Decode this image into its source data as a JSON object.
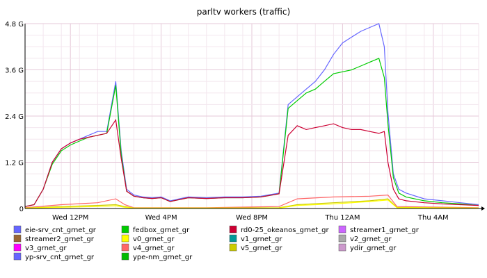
{
  "chart_data": {
    "type": "line",
    "title": "parltv workers (traffic)",
    "xlabel": "",
    "ylabel": "",
    "x_tick_labels": [
      "Wed 12PM",
      "Wed  4PM",
      "Wed  8PM",
      "Thu 12AM",
      "Thu  4AM"
    ],
    "x_range_hours": [
      0,
      25
    ],
    "x_tick_hours": [
      2.5,
      7.5,
      12.5,
      17.5,
      22.5
    ],
    "ylim": [
      0,
      4.8
    ],
    "y_ticks": [
      0,
      1.2,
      2.4,
      3.6,
      4.8
    ],
    "y_tick_labels": [
      "0",
      "1.2 G",
      "2.4 G",
      "3.6 G",
      "4.8 G"
    ],
    "grid": true,
    "legend_position": "bottom",
    "series": [
      {
        "name": "eie-srv_cnt_grnet_gr",
        "color": "#6666ff"
      },
      {
        "name": "fedbox_grnet_gr",
        "color": "#00cc00"
      },
      {
        "name": "rd0-25_okeanos_grnet_gr",
        "color": "#cc0033"
      },
      {
        "name": "streamer1_grnet_gr",
        "color": "#cc66ff"
      },
      {
        "name": "streamer2_grnet_gr",
        "color": "#996633"
      },
      {
        "name": "v0_grnet_gr",
        "color": "#ffff00"
      },
      {
        "name": "v1_grnet_gr",
        "color": "#009999"
      },
      {
        "name": "v2_grnet_gr",
        "color": "#aaaaaa"
      },
      {
        "name": "v3_grnet_gr",
        "color": "#ff00ff"
      },
      {
        "name": "v4_grnet_gr",
        "color": "#ff6666"
      },
      {
        "name": "v5_grnet_gr",
        "color": "#cccc00"
      },
      {
        "name": "ydir_grnet_gr",
        "color": "#cc99cc"
      },
      {
        "name": "yp-srv_cnt_grnet_gr",
        "color": "#6666ff"
      },
      {
        "name": "ype-nm_grnet_gr",
        "color": "#00bb00"
      }
    ],
    "plotted": [
      {
        "series": "eie-srv_cnt_grnet_gr",
        "x": [
          0,
          0.5,
          1,
          1.5,
          2,
          2.5,
          3,
          3.5,
          4,
          4.5,
          5,
          5.3,
          5.6,
          6,
          6.5,
          7,
          7.5,
          8,
          9,
          10,
          11,
          12,
          13,
          14,
          14.5,
          15,
          15.5,
          16,
          16.5,
          17,
          17.5,
          18,
          18.5,
          19,
          19.5,
          19.8,
          20,
          20.3,
          20.6,
          21,
          22,
          23,
          24,
          25
        ],
        "y": [
          0.05,
          0.1,
          0.5,
          1.2,
          1.55,
          1.7,
          1.8,
          1.9,
          2.0,
          2.0,
          3.3,
          1.5,
          0.5,
          0.35,
          0.3,
          0.28,
          0.3,
          0.2,
          0.3,
          0.28,
          0.3,
          0.3,
          0.32,
          0.4,
          2.7,
          2.9,
          3.1,
          3.3,
          3.6,
          4.0,
          4.3,
          4.45,
          4.6,
          4.7,
          4.8,
          4.2,
          2.5,
          0.9,
          0.5,
          0.4,
          0.25,
          0.2,
          0.15,
          0.1
        ]
      },
      {
        "series": "fedbox_grnet_gr",
        "x": [
          0,
          0.5,
          1,
          1.5,
          2,
          2.5,
          3,
          3.5,
          4,
          4.5,
          5,
          5.3,
          5.6,
          6,
          6.5,
          7,
          7.5,
          8,
          9,
          10,
          11,
          12,
          13,
          14,
          14.5,
          15,
          15.5,
          16,
          16.5,
          17,
          17.5,
          18,
          18.5,
          19,
          19.5,
          19.8,
          20,
          20.3,
          20.6,
          21,
          22,
          23,
          24,
          25
        ],
        "y": [
          0.05,
          0.1,
          0.5,
          1.15,
          1.5,
          1.65,
          1.75,
          1.85,
          1.9,
          1.95,
          3.2,
          1.4,
          0.45,
          0.32,
          0.28,
          0.26,
          0.28,
          0.18,
          0.28,
          0.26,
          0.28,
          0.28,
          0.3,
          0.38,
          2.6,
          2.8,
          3.0,
          3.1,
          3.3,
          3.5,
          3.55,
          3.6,
          3.7,
          3.8,
          3.9,
          3.4,
          2.2,
          0.8,
          0.4,
          0.3,
          0.2,
          0.15,
          0.12,
          0.08
        ]
      },
      {
        "series": "rd0-25_okeanos_grnet_gr",
        "x": [
          0,
          0.5,
          1,
          1.5,
          2,
          2.5,
          3,
          3.5,
          4,
          4.5,
          5,
          5.3,
          5.6,
          6,
          6.5,
          7,
          7.5,
          8,
          9,
          10,
          11,
          12,
          13,
          14,
          14.5,
          15,
          15.5,
          16,
          16.5,
          17,
          17.5,
          18,
          18.5,
          19,
          19.5,
          19.8,
          20,
          20.3,
          20.6,
          21,
          22,
          23,
          24,
          25
        ],
        "y": [
          0.05,
          0.1,
          0.5,
          1.2,
          1.55,
          1.7,
          1.8,
          1.85,
          1.9,
          1.95,
          2.3,
          1.3,
          0.45,
          0.32,
          0.28,
          0.26,
          0.28,
          0.18,
          0.28,
          0.26,
          0.28,
          0.28,
          0.3,
          0.38,
          1.9,
          2.15,
          2.05,
          2.1,
          2.15,
          2.2,
          2.1,
          2.05,
          2.05,
          2.0,
          1.95,
          2.0,
          1.2,
          0.5,
          0.25,
          0.2,
          0.15,
          0.12,
          0.1,
          0.08
        ]
      },
      {
        "series": "v4_grnet_gr",
        "x": [
          0,
          2,
          4,
          5,
          5.5,
          6,
          10,
          14,
          15,
          17,
          19,
          20,
          20.5,
          25
        ],
        "y": [
          0.02,
          0.1,
          0.15,
          0.25,
          0.1,
          0.02,
          0.02,
          0.05,
          0.25,
          0.3,
          0.32,
          0.35,
          0.05,
          0.02
        ]
      },
      {
        "series": "v5_grnet_gr",
        "x": [
          0,
          2,
          4,
          5,
          5.5,
          6,
          10,
          14,
          15,
          17,
          19,
          20,
          20.5,
          25
        ],
        "y": [
          0.01,
          0.05,
          0.08,
          0.1,
          0.05,
          0.01,
          0.01,
          0.02,
          0.1,
          0.15,
          0.2,
          0.25,
          0.03,
          0.01
        ]
      },
      {
        "series": "v0_grnet_gr",
        "x": [
          0,
          2,
          4,
          5,
          5.5,
          6,
          10,
          14,
          15,
          17,
          19,
          20,
          20.5,
          25
        ],
        "y": [
          0.01,
          0.03,
          0.05,
          0.07,
          0.03,
          0.01,
          0.01,
          0.01,
          0.08,
          0.12,
          0.18,
          0.22,
          0.02,
          0.01
        ]
      }
    ]
  }
}
